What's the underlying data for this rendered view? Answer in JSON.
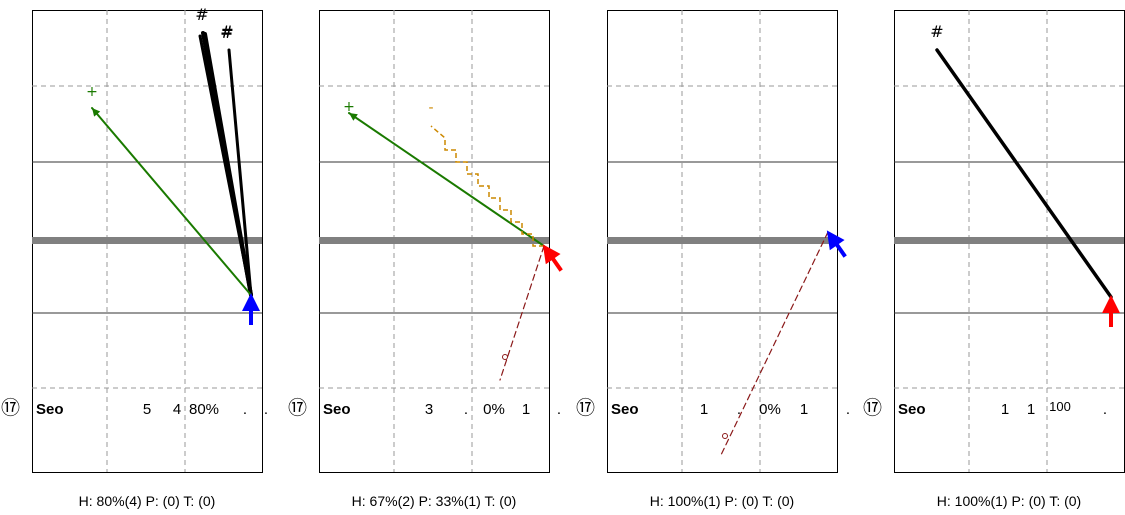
{
  "chart_data": [
    {
      "type": "other",
      "player_label": "Seo",
      "badge": "⑰",
      "stats": [
        "5",
        "4",
        "80%",
        ".",
        "."
      ],
      "summary": "H: 80%(4)  P: (0)  T: (0)",
      "arrow": {
        "color": "#0000ff",
        "direction": "up"
      },
      "lines": [
        {
          "kind": "thick",
          "color": "#000000",
          "marker": "#",
          "marker_color": "#000000"
        },
        {
          "kind": "thick",
          "color": "#000000",
          "marker": "#",
          "marker_color": "#000000"
        },
        {
          "kind": "thick",
          "color": "#000000",
          "marker": "",
          "marker_color": "#000000"
        },
        {
          "kind": "thick",
          "color": "#000000",
          "marker": "#",
          "marker_color": "#000000"
        },
        {
          "kind": "arrow",
          "color": "#1a7a00",
          "marker": "+",
          "marker_color": "#1a7a00"
        }
      ]
    },
    {
      "type": "other",
      "player_label": "Seo",
      "badge": "⑰",
      "stats": [
        "3",
        ".",
        "0%",
        "1",
        "."
      ],
      "summary": "H: 67%(2)  P: 33%(1)  T: (0)",
      "arrow": {
        "color": "#ff0000",
        "direction": "up-left"
      },
      "lines": [
        {
          "kind": "arrow",
          "color": "#1a7a00",
          "marker": "+",
          "marker_color": "#1a7a00"
        },
        {
          "kind": "zigzag",
          "color": "#cc8800",
          "marker": "-",
          "marker_color": "#cc8800"
        },
        {
          "kind": "dashed",
          "color": "#8b1a1a",
          "marker": "o",
          "marker_color": "#8b1a1a"
        }
      ]
    },
    {
      "type": "other",
      "player_label": "Seo",
      "badge": "⑰",
      "stats": [
        "1",
        ".",
        "0%",
        "1",
        "."
      ],
      "summary": "H: 100%(1)  P: (0)  T: (0)",
      "arrow": {
        "color": "#0000ff",
        "direction": "up-left"
      },
      "lines": [
        {
          "kind": "dashed",
          "color": "#8b1a1a",
          "marker": "o",
          "marker_color": "#8b1a1a"
        }
      ]
    },
    {
      "type": "other",
      "player_label": "Seo",
      "badge": "⑰",
      "stats": [
        "1",
        "1",
        "100",
        "."
      ],
      "summary": "H: 100%(1)  P: (0)  T: (0)",
      "arrow": {
        "color": "#ff0000",
        "direction": "up"
      },
      "lines": [
        {
          "kind": "thick",
          "color": "#000000",
          "marker": "#",
          "marker_color": "#000000"
        }
      ]
    }
  ]
}
